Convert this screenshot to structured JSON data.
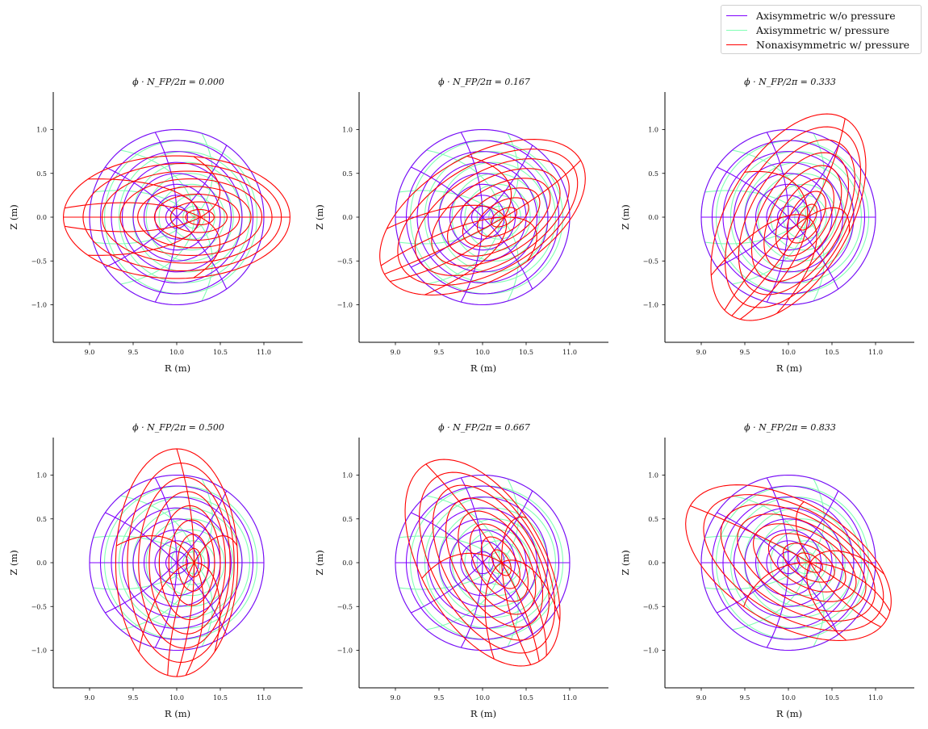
{
  "legend": {
    "position": "top-right",
    "items": [
      {
        "label": "Axisymmetric w/o pressure",
        "color": "#7f00ff"
      },
      {
        "label": "Axisymmetric w/ pressure",
        "color": "#80ffb4"
      },
      {
        "label": "Nonaxisymmetric w/ pressure",
        "color": "#ff0000"
      }
    ]
  },
  "chart_data": [
    {
      "type": "line",
      "title": "ϕ · N_FP/2π = 0.000",
      "phi_fraction": 0.0,
      "xlabel": "R (m)",
      "ylabel": "Z (m)",
      "xlim": [
        8.58,
        11.44
      ],
      "ylim": [
        -1.43,
        1.43
      ],
      "xticks": [
        "9.0",
        "9.5",
        "10.0",
        "10.5",
        "11.0"
      ],
      "yticks": [
        "−1.0",
        "−0.5",
        "0.0",
        "0.5",
        "1.0"
      ],
      "grid": false,
      "series": [
        {
          "name": "Axisymmetric w/o pressure",
          "boundary": {
            "R_center": 10.0,
            "semi_axis_R": 1.0,
            "semi_axis_Z": 1.0,
            "tilt_deg": 0
          }
        },
        {
          "name": "Axisymmetric w/ pressure",
          "boundary": {
            "R_center": 10.0,
            "semi_axis_R": 1.0,
            "semi_axis_Z": 1.0,
            "tilt_deg": 0
          },
          "axis_R": 10.2
        },
        {
          "name": "Nonaxisymmetric w/ pressure",
          "boundary": {
            "R_center": 10.0,
            "semi_axis_major": 1.3,
            "semi_axis_minor": 0.7,
            "tilt_deg": 0
          },
          "axis_R": 10.27
        }
      ]
    },
    {
      "type": "line",
      "title": "ϕ · N_FP/2π = 0.167",
      "phi_fraction": 0.167,
      "xlabel": "R (m)",
      "ylabel": "Z (m)",
      "xlim": [
        8.58,
        11.44
      ],
      "ylim": [
        -1.43,
        1.43
      ],
      "xticks": [
        "9.0",
        "9.5",
        "10.0",
        "10.5",
        "11.0"
      ],
      "yticks": [
        "−1.0",
        "−0.5",
        "0.0",
        "0.5",
        "1.0"
      ],
      "grid": false,
      "series": [
        {
          "name": "Axisymmetric w/o pressure",
          "boundary": {
            "R_center": 10.0,
            "semi_axis_R": 1.0,
            "semi_axis_Z": 1.0,
            "tilt_deg": 0
          }
        },
        {
          "name": "Axisymmetric w/ pressure",
          "boundary": {
            "R_center": 10.0,
            "semi_axis_R": 1.0,
            "semi_axis_Z": 1.0,
            "tilt_deg": 0
          },
          "axis_R": 10.2
        },
        {
          "name": "Nonaxisymmetric w/ pressure",
          "boundary": {
            "R_center": 10.0,
            "semi_axis_major": 1.3,
            "semi_axis_minor": 0.7,
            "tilt_deg": 30
          },
          "axis_R": 10.25
        }
      ]
    },
    {
      "type": "line",
      "title": "ϕ · N_FP/2π = 0.333",
      "phi_fraction": 0.333,
      "xlabel": "R (m)",
      "ylabel": "Z (m)",
      "xlim": [
        8.58,
        11.44
      ],
      "ylim": [
        -1.43,
        1.43
      ],
      "xticks": [
        "9.0",
        "9.5",
        "10.0",
        "10.5",
        "11.0"
      ],
      "yticks": [
        "−1.0",
        "−0.5",
        "0.0",
        "0.5",
        "1.0"
      ],
      "grid": false,
      "series": [
        {
          "name": "Axisymmetric w/o pressure",
          "boundary": {
            "R_center": 10.0,
            "semi_axis_R": 1.0,
            "semi_axis_Z": 1.0,
            "tilt_deg": 0
          }
        },
        {
          "name": "Axisymmetric w/ pressure",
          "boundary": {
            "R_center": 10.0,
            "semi_axis_R": 1.0,
            "semi_axis_Z": 1.0,
            "tilt_deg": 0
          },
          "axis_R": 10.2
        },
        {
          "name": "Nonaxisymmetric w/ pressure",
          "boundary": {
            "R_center": 10.0,
            "semi_axis_major": 1.3,
            "semi_axis_minor": 0.7,
            "tilt_deg": 60
          },
          "axis_R": 10.22
        }
      ]
    },
    {
      "type": "line",
      "title": "ϕ · N_FP/2π = 0.500",
      "phi_fraction": 0.5,
      "xlabel": "R (m)",
      "ylabel": "Z (m)",
      "xlim": [
        8.58,
        11.44
      ],
      "ylim": [
        -1.43,
        1.43
      ],
      "xticks": [
        "9.0",
        "9.5",
        "10.0",
        "10.5",
        "11.0"
      ],
      "yticks": [
        "−1.0",
        "−0.5",
        "0.0",
        "0.5",
        "1.0"
      ],
      "grid": false,
      "series": [
        {
          "name": "Axisymmetric w/o pressure",
          "boundary": {
            "R_center": 10.0,
            "semi_axis_R": 1.0,
            "semi_axis_Z": 1.0,
            "tilt_deg": 0
          }
        },
        {
          "name": "Axisymmetric w/ pressure",
          "boundary": {
            "R_center": 10.0,
            "semi_axis_R": 1.0,
            "semi_axis_Z": 1.0,
            "tilt_deg": 0
          },
          "axis_R": 10.2
        },
        {
          "name": "Nonaxisymmetric w/ pressure",
          "boundary": {
            "R_center": 10.0,
            "semi_axis_major": 1.3,
            "semi_axis_minor": 0.7,
            "tilt_deg": 90
          },
          "axis_R": 10.2
        }
      ]
    },
    {
      "type": "line",
      "title": "ϕ · N_FP/2π = 0.667",
      "phi_fraction": 0.667,
      "xlabel": "R (m)",
      "ylabel": "Z (m)",
      "xlim": [
        8.58,
        11.44
      ],
      "ylim": [
        -1.43,
        1.43
      ],
      "xticks": [
        "9.0",
        "9.5",
        "10.0",
        "10.5",
        "11.0"
      ],
      "yticks": [
        "−1.0",
        "−0.5",
        "0.0",
        "0.5",
        "1.0"
      ],
      "grid": false,
      "series": [
        {
          "name": "Axisymmetric w/o pressure",
          "boundary": {
            "R_center": 10.0,
            "semi_axis_R": 1.0,
            "semi_axis_Z": 1.0,
            "tilt_deg": 0
          }
        },
        {
          "name": "Axisymmetric w/ pressure",
          "boundary": {
            "R_center": 10.0,
            "semi_axis_R": 1.0,
            "semi_axis_Z": 1.0,
            "tilt_deg": 0
          },
          "axis_R": 10.2
        },
        {
          "name": "Nonaxisymmetric w/ pressure",
          "boundary": {
            "R_center": 10.0,
            "semi_axis_major": 1.3,
            "semi_axis_minor": 0.7,
            "tilt_deg": 120
          },
          "axis_R": 10.22
        }
      ]
    },
    {
      "type": "line",
      "title": "ϕ · N_FP/2π = 0.833",
      "phi_fraction": 0.833,
      "xlabel": "R (m)",
      "ylabel": "Z (m)",
      "xlim": [
        8.58,
        11.44
      ],
      "ylim": [
        -1.43,
        1.43
      ],
      "xticks": [
        "9.0",
        "9.5",
        "10.0",
        "10.5",
        "11.0"
      ],
      "yticks": [
        "−1.0",
        "−0.5",
        "0.0",
        "0.5",
        "1.0"
      ],
      "grid": false,
      "series": [
        {
          "name": "Axisymmetric w/o pressure",
          "boundary": {
            "R_center": 10.0,
            "semi_axis_R": 1.0,
            "semi_axis_Z": 1.0,
            "tilt_deg": 0
          }
        },
        {
          "name": "Axisymmetric w/ pressure",
          "boundary": {
            "R_center": 10.0,
            "semi_axis_R": 1.0,
            "semi_axis_Z": 1.0,
            "tilt_deg": 0
          },
          "axis_R": 10.2
        },
        {
          "name": "Nonaxisymmetric w/ pressure",
          "boundary": {
            "R_center": 10.0,
            "semi_axis_major": 1.3,
            "semi_axis_minor": 0.7,
            "tilt_deg": 150
          },
          "axis_R": 10.25
        }
      ]
    }
  ]
}
